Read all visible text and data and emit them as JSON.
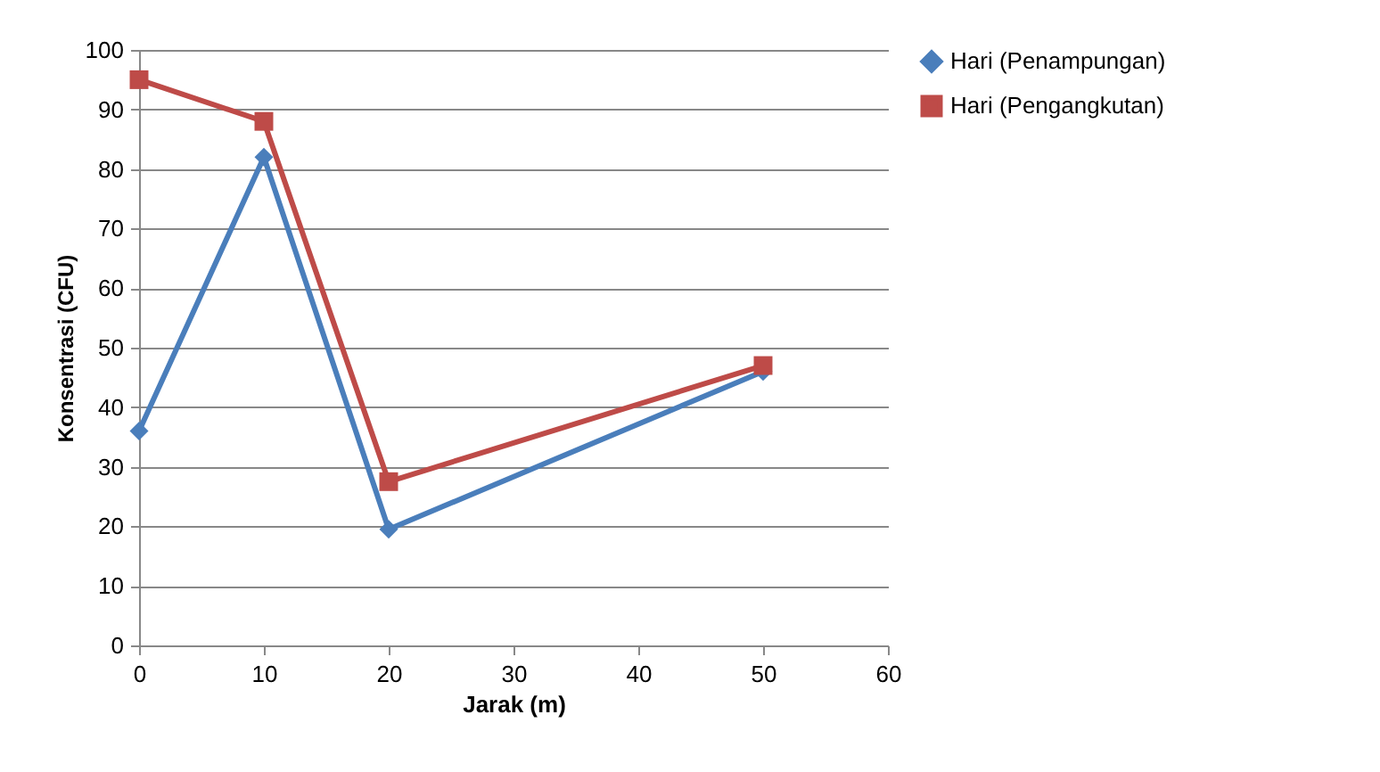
{
  "chart_data": {
    "type": "line",
    "xlabel": "Jarak (m)",
    "ylabel": "Konsentrasi (CFU)",
    "x": [
      0,
      10,
      20,
      50
    ],
    "series": [
      {
        "name": "Hari (Penampungan)",
        "color": "#4a7ebb",
        "marker": "diamond",
        "values": [
          36,
          82,
          19.5,
          46
        ]
      },
      {
        "name": "Hari (Pengangkutan)",
        "color": "#be4b48",
        "marker": "square",
        "values": [
          95,
          88,
          27.5,
          47
        ]
      }
    ],
    "xlim": [
      0,
      60
    ],
    "xticks": [
      0,
      10,
      20,
      30,
      40,
      50,
      60
    ],
    "ylim": [
      0,
      100
    ],
    "yticks": [
      0,
      10,
      20,
      30,
      40,
      50,
      60,
      70,
      80,
      90,
      100
    ],
    "grid": "y",
    "legend": "right"
  }
}
